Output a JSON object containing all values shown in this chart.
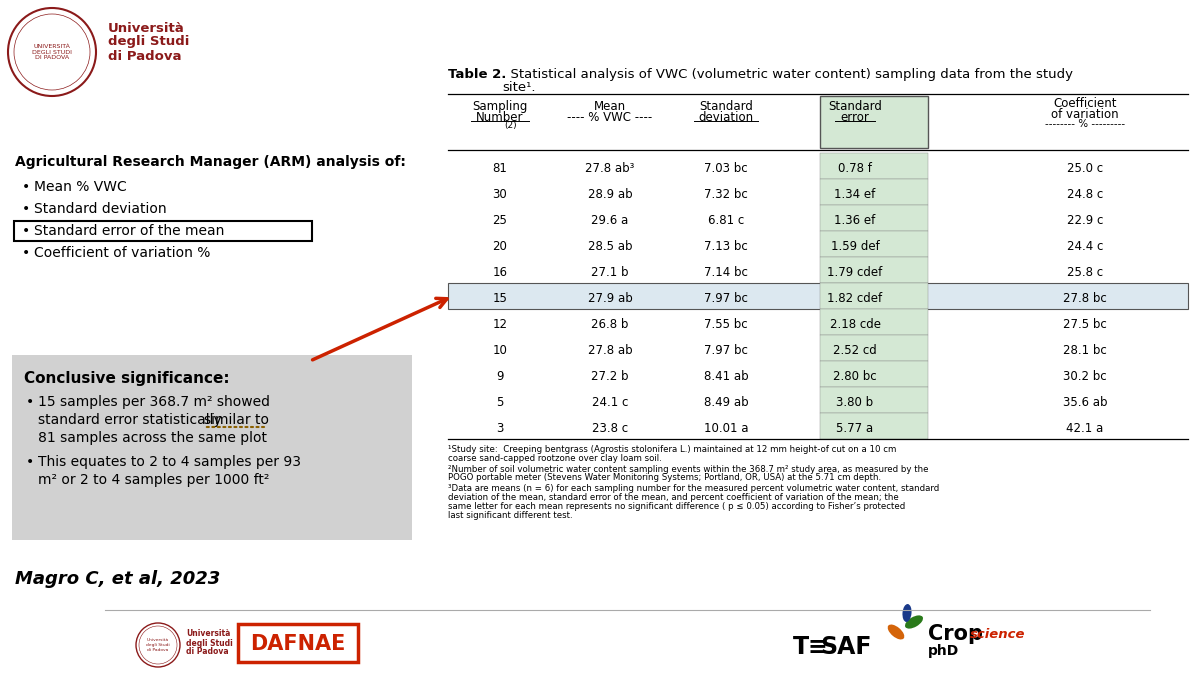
{
  "bg_color": "#ffffff",
  "university_lines": [
    "Università",
    "degli Studi",
    "di Padova"
  ],
  "arm_title": "Agricultural Research Manager (ARM) analysis of:",
  "arm_bullets": [
    "Mean % VWC",
    "Standard deviation",
    "Standard error of the mean",
    "Coefficient of variation %"
  ],
  "highlighted_bullet_idx": 2,
  "conclusion_title": "Conclusive significance:",
  "conclusion_bullet1_parts": [
    "15 samples per 368.7 m² showed",
    "standard error statistically ",
    "similar to",
    "81 samples across the same plot"
  ],
  "conclusion_bullet2_lines": [
    "This equates to 2 to 4 samples per 93",
    "m² or 2 to 4 samples per 1000 ft²"
  ],
  "citation": "Magro C, et al, 2023",
  "table_title_bold": "Table 2.",
  "table_title_rest": "  Statistical analysis of VWC (volumetric water content) sampling data from the study site¹.",
  "table_data": [
    [
      "81",
      "27.8 ab³",
      "7.03 bc",
      "0.78 f",
      "25.0 c"
    ],
    [
      "30",
      "28.9 ab",
      "7.32 bc",
      "1.34 ef",
      "24.8 c"
    ],
    [
      "25",
      "29.6 a",
      "6.81 c",
      "1.36 ef",
      "22.9 c"
    ],
    [
      "20",
      "28.5 ab",
      "7.13 bc",
      "1.59 def",
      "24.4 c"
    ],
    [
      "16",
      "27.1 b",
      "7.14 bc",
      "1.79 cdef",
      "25.8 c"
    ],
    [
      "15",
      "27.9 ab",
      "7.97 bc",
      "1.82 cdef",
      "27.8 bc"
    ],
    [
      "12",
      "26.8 b",
      "7.55 bc",
      "2.18 cde",
      "27.5 bc"
    ],
    [
      "10",
      "27.8 ab",
      "7.97 bc",
      "2.52 cd",
      "28.1 bc"
    ],
    [
      "9",
      "27.2 b",
      "8.41 ab",
      "2.80 bc",
      "30.2 bc"
    ],
    [
      "5",
      "24.1 c",
      "8.49 ab",
      "3.80 b",
      "35.6 ab"
    ],
    [
      "3",
      "23.8 c",
      "10.01 a",
      "5.77 a",
      "42.1 a"
    ]
  ],
  "highlighted_row_idx": 5,
  "footnotes": [
    "¹Study site:  Creeping bentgrass (Agrostis stolonifera L.) maintained at 12 mm height-of cut on a 10 cm coarse sand-capped rootzone over clay loam soil.",
    "²Number of soil volumetric water content sampling events within the 368.7 m² study area, as measured by the POGO portable meter (Stevens Water Monitoring Systems; Portland, OR, USA) at the 5.71 cm depth.",
    "³Data are means (n = 6) for each sampling number for the measured percent volumetric water content, standard deviation of the mean, standard error of the mean, and percent coefficient of variation of the mean; the same letter for each mean represents no significant difference ( p ≤ 0.05) according to Fisher’s protected last significant different test."
  ],
  "header_col_highlight_color": "#d4e8d4",
  "row_highlight_color": "#dce8f0",
  "conclusion_box_color": "#cccccc",
  "arrow_color": "#cc2200",
  "dafnae_color": "#cc2200",
  "univ_color": "#8B1A1A"
}
